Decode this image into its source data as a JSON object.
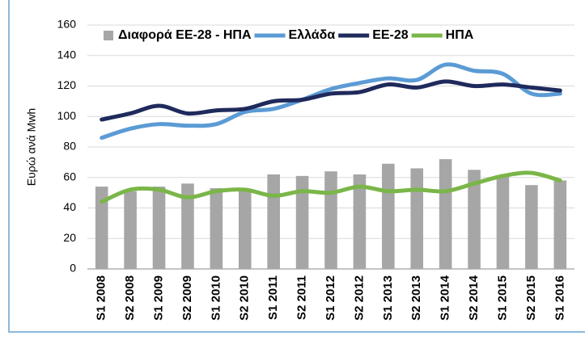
{
  "chart_data": {
    "type": "combo",
    "y_label": "Ευρώ ανά Mwh",
    "categories": [
      "S1 2008",
      "S2 2008",
      "S1 2009",
      "S2 2009",
      "S1 2010",
      "S2 2010",
      "S1 2011",
      "S2 2011",
      "S1 2012",
      "S2 2012",
      "S1 2013",
      "S2 2013",
      "S1 2014",
      "S2 2014",
      "S1 2015",
      "S2 2015",
      "S1 2016"
    ],
    "series": [
      {
        "name": "Διαφορά ΕΕ-28 - ΗΠΑ",
        "type": "bar",
        "color": "#a6a6a6",
        "values": [
          54,
          51,
          54,
          56,
          53,
          52,
          62,
          61,
          64,
          62,
          69,
          66,
          72,
          65,
          61,
          55,
          58
        ]
      },
      {
        "name": "Ελλάδα",
        "type": "line",
        "color": "#5b9bd5",
        "values": [
          86,
          92,
          95,
          94,
          95,
          103,
          105,
          111,
          118,
          122,
          125,
          124,
          134,
          130,
          128,
          115,
          115
        ]
      },
      {
        "name": "ΕΕ-28",
        "type": "line",
        "color": "#1f2a5c",
        "values": [
          98,
          102,
          107,
          102,
          104,
          105,
          110,
          111,
          115,
          116,
          121,
          119,
          123,
          120,
          121,
          119,
          117
        ]
      },
      {
        "name": "ΗΠΑ",
        "type": "line",
        "color": "#7ab648",
        "values": [
          44,
          52,
          52,
          47,
          51,
          52,
          48,
          51,
          50,
          54,
          51,
          52,
          51,
          56,
          61,
          63,
          58
        ]
      }
    ],
    "ylim": [
      0,
      160
    ],
    "yticks": [
      0,
      20,
      40,
      60,
      80,
      100,
      120,
      140,
      160
    ],
    "grid": true
  }
}
